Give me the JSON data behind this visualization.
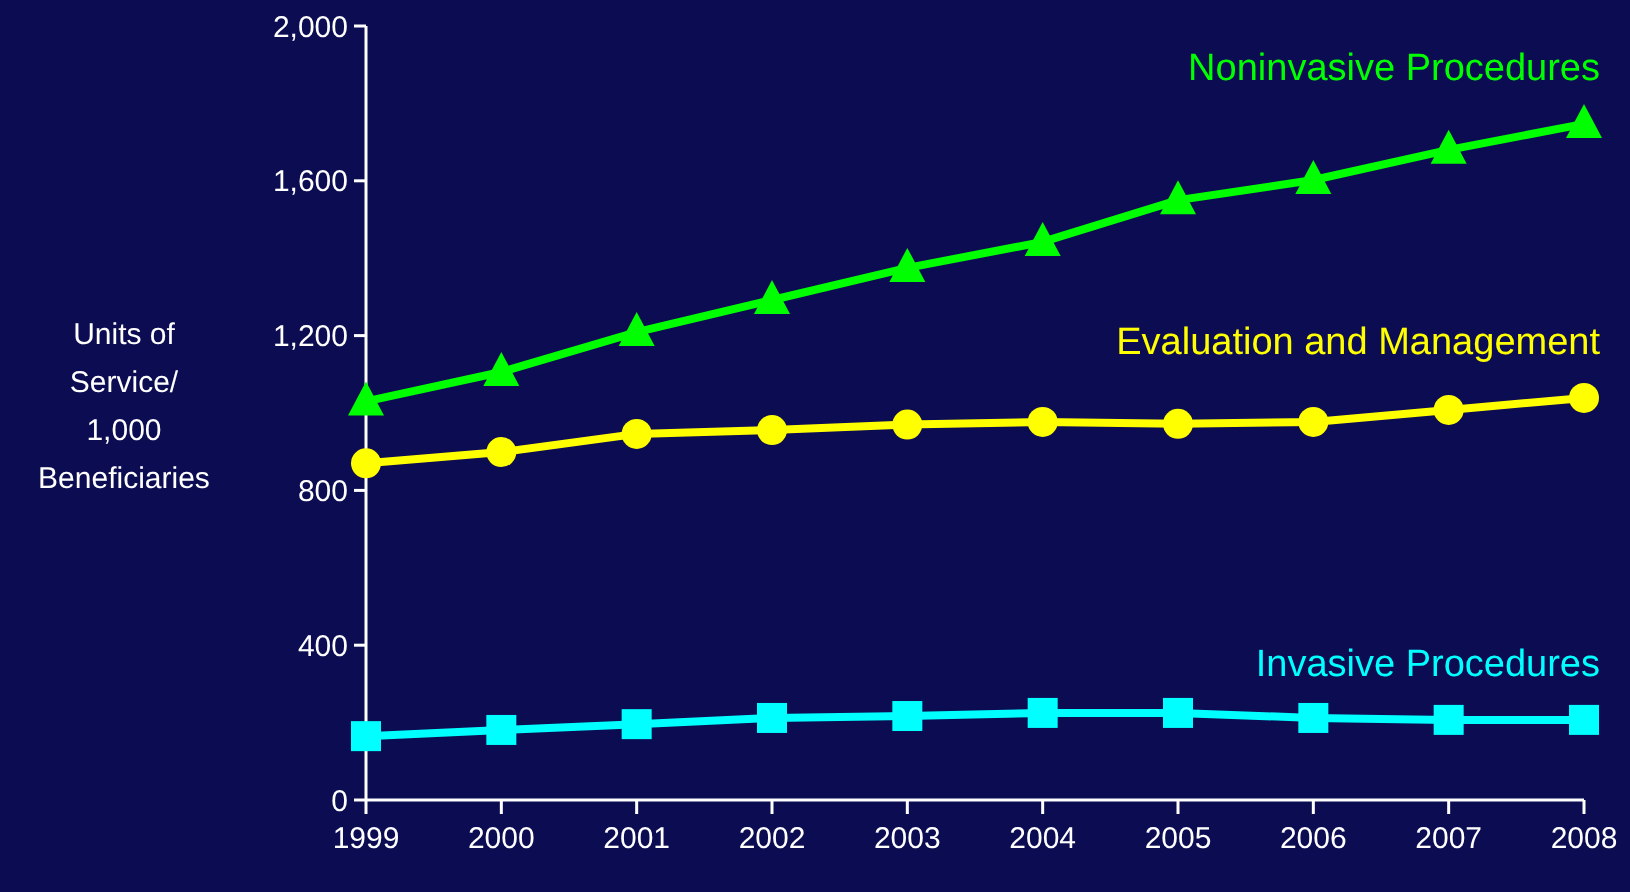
{
  "chart_data": {
    "type": "line",
    "ylabel": "Units of\nService/\n1,000\nBeneficiaries",
    "categories": [
      "1999",
      "2000",
      "2001",
      "2002",
      "2003",
      "2004",
      "2005",
      "2006",
      "2007",
      "2008"
    ],
    "ylim": [
      0,
      2000
    ],
    "yticks": [
      0,
      400,
      800,
      {
        "value": 1200,
        "label": "1,200"
      },
      {
        "value": 1600,
        "label": "1,600"
      },
      {
        "value": 2000,
        "label": "2,000"
      }
    ],
    "grid": false,
    "series": [
      {
        "name": "Noninvasive Procedures",
        "color": "#00ff00",
        "marker": "triangle",
        "values": [
          1030,
          1106,
          1209,
          1292,
          1375,
          1442,
          1550,
          1602,
          1680,
          1747
        ]
      },
      {
        "name": "Evaluation and Management",
        "color": "#ffff00",
        "marker": "circle",
        "values": [
          870,
          899,
          946,
          956,
          970,
          977,
          972,
          977,
          1008,
          1039
        ]
      },
      {
        "name": "Invasive Procedures",
        "color": "#00ffff",
        "marker": "square",
        "values": [
          165,
          181,
          196,
          212,
          217,
          225,
          225,
          212,
          207,
          207
        ]
      }
    ]
  }
}
